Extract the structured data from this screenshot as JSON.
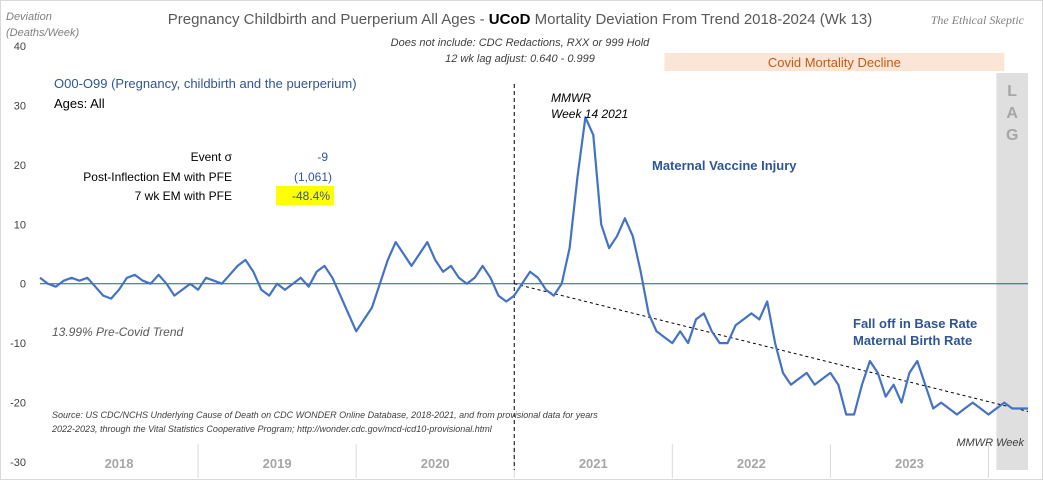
{
  "title": {
    "part1": "Pregnancy Childbirth and Puerperium All Ages - ",
    "bold": "UCoD",
    "part2": " Mortality Deviation From Trend  2018-2024 (Wk 13)"
  },
  "subtitle_line1": "Does not include: CDC Redactions,  RXX or 999 Hold",
  "subtitle_line2": "12 wk lag adjust: 0.640 - 0.999",
  "logo_text": "The Ethical Skeptic",
  "ylabel_line1": "Deviation",
  "ylabel_line2": "(Deaths/Week)",
  "series_label": "O00-O99 (Pregnancy, childbirth and the puerperium)",
  "ages_label": "Ages: All",
  "stats": [
    {
      "label": "Event σ",
      "value": "-9",
      "highlight": false
    },
    {
      "label": "Post-Inflection EM with PFE",
      "value": "(1,061)",
      "highlight": false
    },
    {
      "label": "7 wk EM with PFE",
      "value": "-48.4%",
      "highlight": true
    }
  ],
  "mmwr_line1": "MMWR",
  "mmwr_line2": "Week 14 2021",
  "annotation_vaccine": "Maternal Vaccine Injury",
  "annotation_falloff_line1": "Fall off in Base Rate",
  "annotation_falloff_line2": "Maternal Birth Rate",
  "band_label": "Covid Mortality Decline",
  "lag_label": [
    "L",
    "A",
    "G"
  ],
  "trend_label": "13.99% Pre-Covid Trend",
  "source_line1": "Source: US CDC/NCHS Underlying Cause of Death on CDC WONDER Online Database, 2018-2021, and from provisional data for years",
  "source_line2": "2022-2023, through the Vital Statistics Cooperative Program; http://wonder.cdc.gov/mcd-icd10-provisional.html",
  "mmwr_week_label": "MMWR Week",
  "colors": {
    "series": "#4472c4",
    "zero_line": "#2f5597",
    "band": "#fbe5d6",
    "band_text": "#c55a11",
    "highlight": "#ffff00",
    "lag_band": "#d9d9d9"
  },
  "chart_data": {
    "type": "line",
    "title": "Pregnancy Childbirth and Puerperium All Ages - UCoD Mortality Deviation From Trend  2018-2024 (Wk 13)",
    "ylabel": "Deviation (Deaths/Week)",
    "xlabel": "",
    "ylim": [
      -30,
      40
    ],
    "yticks": [
      40,
      30,
      20,
      10,
      0,
      -10,
      -20,
      -30
    ],
    "xlim": [
      2018.0,
      2024.25
    ],
    "year_ticks": [
      "2018",
      "2019",
      "2020",
      "2021",
      "2022",
      "2023"
    ],
    "series": [
      {
        "x": [
          2018.0,
          2018.05,
          2018.1,
          2018.15,
          2018.2,
          2018.25,
          2018.3,
          2018.35,
          2018.4,
          2018.45,
          2018.5,
          2018.55,
          2018.6,
          2018.65,
          2018.7,
          2018.75,
          2018.8,
          2018.85,
          2018.9,
          2018.95,
          2019.0,
          2019.05,
          2019.1,
          2019.15,
          2019.2,
          2019.25,
          2019.3,
          2019.35,
          2019.4,
          2019.45,
          2019.5,
          2019.55,
          2019.6,
          2019.65,
          2019.7,
          2019.75,
          2019.8,
          2019.85,
          2019.9,
          2019.95,
          2020.0,
          2020.05,
          2020.1,
          2020.15,
          2020.2,
          2020.25,
          2020.3,
          2020.35,
          2020.4,
          2020.45,
          2020.5,
          2020.55,
          2020.6,
          2020.65,
          2020.7,
          2020.75,
          2020.8,
          2020.85,
          2020.9,
          2020.95,
          2021.0,
          2021.05,
          2021.1,
          2021.15,
          2021.2,
          2021.25,
          2021.3,
          2021.35,
          2021.4,
          2021.45,
          2021.5,
          2021.55,
          2021.6,
          2021.65,
          2021.7,
          2021.75,
          2021.8,
          2021.85,
          2021.9,
          2021.95,
          2022.0,
          2022.05,
          2022.1,
          2022.15,
          2022.2,
          2022.25,
          2022.3,
          2022.35,
          2022.4,
          2022.45,
          2022.5,
          2022.55,
          2022.6,
          2022.65,
          2022.7,
          2022.75,
          2022.8,
          2022.85,
          2022.9,
          2022.95,
          2023.0,
          2023.05,
          2023.1,
          2023.15,
          2023.2,
          2023.25,
          2023.3,
          2023.35,
          2023.4,
          2023.45,
          2023.5,
          2023.55,
          2023.6,
          2023.65,
          2023.7,
          2023.75,
          2023.8,
          2023.85,
          2023.9,
          2023.95,
          2024.0,
          2024.05,
          2024.1,
          2024.15,
          2024.2,
          2024.25
        ],
        "y": [
          1,
          0,
          -0.5,
          0.5,
          1,
          0.5,
          1,
          -0.5,
          -2,
          -2.5,
          -1,
          1,
          1.5,
          0.5,
          0,
          1.5,
          0,
          -2,
          -1,
          0,
          -1,
          1,
          0.5,
          0,
          1.5,
          3,
          4,
          2,
          -1,
          -2,
          0,
          -1,
          0,
          1,
          -0.5,
          2,
          3,
          1,
          -2,
          -5,
          -8,
          -6,
          -4,
          0,
          4,
          7,
          5,
          3,
          5,
          7,
          4,
          2,
          3,
          1,
          0,
          1,
          3,
          1,
          -2,
          -3,
          -2,
          0,
          2,
          1,
          -1,
          -2,
          0,
          6,
          18,
          28,
          25,
          10,
          6,
          8,
          11,
          8,
          2,
          -5,
          -8,
          -9,
          -10,
          -8,
          -10,
          -6,
          -5,
          -8,
          -10,
          -10,
          -7,
          -6,
          -5,
          -6,
          -3,
          -10,
          -15,
          -17,
          -16,
          -15,
          -17,
          -16,
          -15,
          -17,
          -22,
          -22,
          -17,
          -13,
          -15,
          -19,
          -17,
          -20,
          -15,
          -13,
          -17,
          -21,
          -20,
          -21,
          -22,
          -21,
          -20,
          -21,
          -22,
          -21,
          -20,
          -21,
          -21,
          -21
        ]
      }
    ],
    "trend_line": {
      "x": [
        2021.0,
        2024.25
      ],
      "y": [
        0,
        -21.5
      ]
    },
    "vertical_marker_x": 2021.0,
    "shaded_band": {
      "x_start": 2021.95,
      "x_end": 2024.1,
      "label": "Covid Mortality Decline"
    },
    "lag_region": {
      "x_start": 2024.05,
      "x_end": 2024.25,
      "label": "LAG"
    },
    "annotations": [
      "O00-O99 (Pregnancy, childbirth and the puerperium)",
      "Ages: All",
      "MMWR Week 14 2021",
      "Maternal Vaccine Injury",
      "Fall off in Base Rate Maternal Birth Rate",
      "13.99% Pre-Covid Trend",
      "Covid Mortality Decline"
    ],
    "grid": false,
    "legend": "none"
  }
}
